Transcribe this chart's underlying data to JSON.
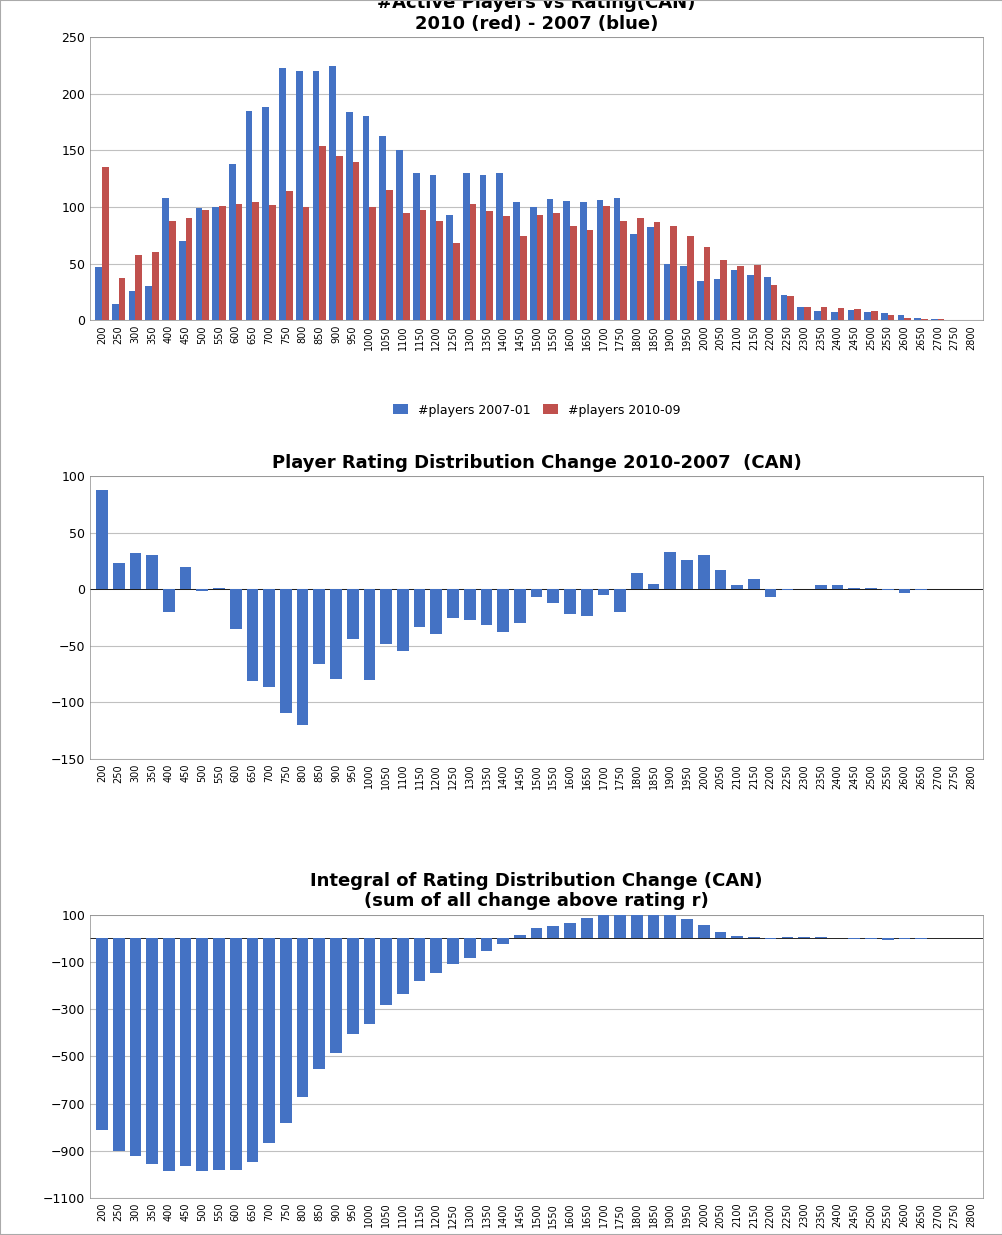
{
  "ratings": [
    200,
    250,
    300,
    350,
    400,
    450,
    500,
    550,
    600,
    650,
    700,
    750,
    800,
    850,
    900,
    950,
    1000,
    1050,
    1100,
    1150,
    1200,
    1250,
    1300,
    1350,
    1400,
    1450,
    1500,
    1550,
    1600,
    1650,
    1700,
    1750,
    1800,
    1850,
    1900,
    1950,
    2000,
    2050,
    2100,
    2150,
    2200,
    2250,
    2300,
    2350,
    2400,
    2450,
    2500,
    2550,
    2600,
    2650,
    2700,
    2750,
    2800
  ],
  "blue_2007": [
    47,
    14,
    26,
    30,
    108,
    70,
    99,
    100,
    138,
    185,
    188,
    223,
    220,
    220,
    224,
    184,
    180,
    163,
    150,
    130,
    128,
    93,
    130,
    128,
    130,
    104,
    100,
    107,
    105,
    104,
    106,
    108,
    76,
    82,
    50,
    48,
    35,
    36,
    44,
    40,
    38,
    22,
    12,
    8,
    7,
    9,
    7,
    6,
    5,
    2,
    1,
    0,
    0
  ],
  "red_2010": [
    135,
    37,
    58,
    60,
    88,
    90,
    97,
    101,
    103,
    104,
    102,
    114,
    100,
    154,
    145,
    140,
    100,
    115,
    95,
    97,
    88,
    68,
    103,
    96,
    92,
    74,
    93,
    95,
    83,
    80,
    101,
    88,
    90,
    87,
    83,
    74,
    65,
    53,
    48,
    49,
    31,
    21,
    12,
    12,
    11,
    10,
    8,
    5,
    2,
    1,
    1,
    0,
    0
  ],
  "chart1_title_line1": "#Active Players vs Rating(CAN)",
  "chart1_title_line2": "2010 (red) - 2007 (blue)",
  "chart2_title": "Player Rating Distribution Change 2010-2007  (CAN)",
  "chart3_title_line1": "Integral of Rating Distribution Change (CAN)",
  "chart3_title_line2": "(sum of all change above rating r)",
  "legend_blue": "#players 2007-01",
  "legend_red": "#players 2010-09",
  "blue_color": "#4472C4",
  "red_color": "#C0504D",
  "chart1_ylim": [
    0,
    250
  ],
  "chart1_yticks": [
    0,
    50,
    100,
    150,
    200,
    250
  ],
  "chart2_ylim": [
    -150,
    100
  ],
  "chart2_yticks": [
    -150,
    -100,
    -50,
    0,
    50,
    100
  ],
  "chart3_ylim": [
    -1100,
    100
  ],
  "chart3_yticks": [
    -1100,
    -900,
    -700,
    -500,
    -300,
    -100,
    100
  ],
  "bg_color": "#FFFFFF",
  "grid_color": "#C0C0C0",
  "outer_border_color": "#AAAAAA"
}
